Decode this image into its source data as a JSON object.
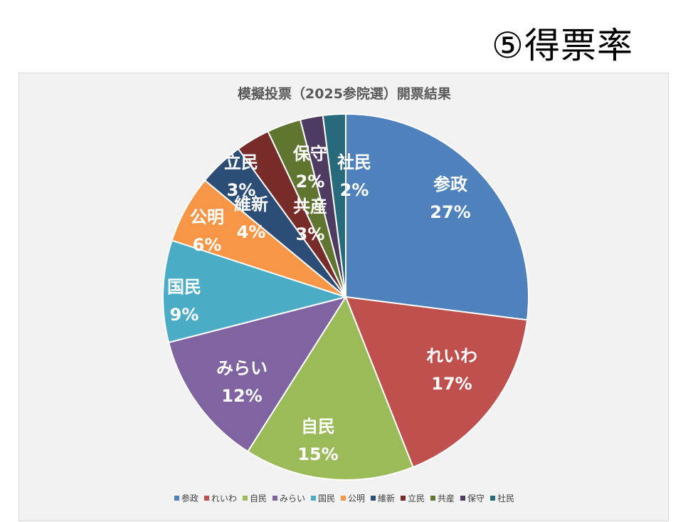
{
  "slide": {
    "title": "⑤得票率"
  },
  "chart_data": {
    "type": "pie",
    "title": "模擬投票（2025参院選）開票結果",
    "legend_position": "bottom",
    "slices": [
      {
        "name": "参政",
        "label": "参政",
        "value": 27,
        "value_label": "27%",
        "color": "#4f81bd"
      },
      {
        "name": "れいわ",
        "label": "れいわ",
        "value": 17,
        "value_label": "17%",
        "color": "#c0504d"
      },
      {
        "name": "自民",
        "label": "自民",
        "value": 15,
        "value_label": "15%",
        "color": "#9bbb59"
      },
      {
        "name": "みらい",
        "label": "みらい",
        "value": 12,
        "value_label": "12%",
        "color": "#8064a2"
      },
      {
        "name": "国民",
        "label": "国民",
        "value": 9,
        "value_label": "9%",
        "color": "#4bacc6"
      },
      {
        "name": "公明",
        "label": "公明",
        "value": 6,
        "value_label": "6%",
        "color": "#f79646"
      },
      {
        "name": "維新",
        "label": "維新",
        "value": 4,
        "value_label": "4%",
        "color": "#2c4d75"
      },
      {
        "name": "立民",
        "label": "立民",
        "value": 3,
        "value_label": "3%",
        "color": "#772c2a"
      },
      {
        "name": "共産",
        "label": "共産",
        "value": 3,
        "value_label": "3%",
        "color": "#5f7530"
      },
      {
        "name": "保守",
        "label": "保守",
        "value": 2,
        "value_label": "2%",
        "color": "#4d3b62"
      },
      {
        "name": "社民",
        "label": "社民",
        "value": 2,
        "value_label": "2%",
        "color": "#276a7c"
      }
    ]
  }
}
